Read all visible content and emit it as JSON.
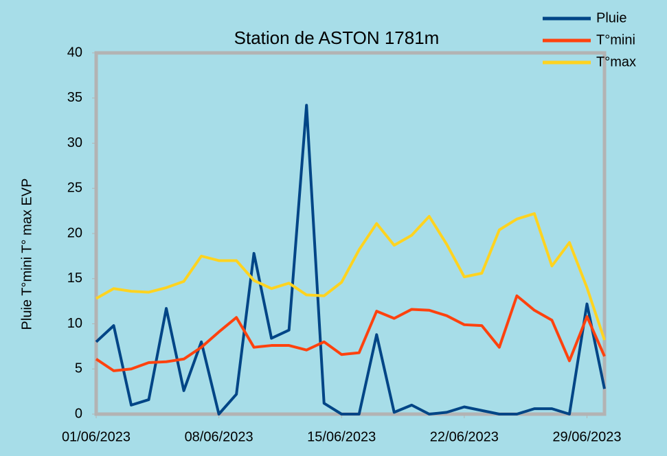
{
  "chart_data": {
    "type": "line",
    "title": "Station de ASTON 1781m",
    "y_label": "Pluie T°mini T° max EVP",
    "categories": [
      "01/06/2023",
      null,
      null,
      null,
      null,
      null,
      null,
      "08/06/2023",
      null,
      null,
      null,
      null,
      null,
      null,
      "15/06/2023",
      null,
      null,
      null,
      null,
      null,
      null,
      "22/06/2023",
      null,
      null,
      null,
      null,
      null,
      null,
      "29/06/2023",
      null
    ],
    "series": [
      {
        "name": "Pluie",
        "color": "#004586",
        "values": [
          8.0,
          9.8,
          1.0,
          1.6,
          11.7,
          2.6,
          8.0,
          0,
          2.2,
          17.8,
          8.4,
          9.3,
          34.2,
          1.2,
          0,
          0,
          8.8,
          0.2,
          1.0,
          0,
          0.2,
          0.8,
          0.4,
          0,
          0,
          0.6,
          0.6,
          0,
          12.2,
          2.8
        ]
      },
      {
        "name": "T°mini",
        "color": "#ff420e",
        "values": [
          6.1,
          4.8,
          5.0,
          5.7,
          5.8,
          6.1,
          7.4,
          9.1,
          10.7,
          7.4,
          7.6,
          7.6,
          7.1,
          8.0,
          6.6,
          6.8,
          11.4,
          10.6,
          11.6,
          11.5,
          10.9,
          9.9,
          9.8,
          7.4,
          13.1,
          11.5,
          10.4,
          5.9,
          10.8,
          6.4
        ]
      },
      {
        "name": "T°max",
        "color": "#ffd320",
        "values": [
          12.8,
          13.9,
          13.6,
          13.5,
          14.0,
          14.7,
          17.5,
          17.0,
          17.0,
          14.8,
          13.9,
          14.5,
          13.2,
          13.1,
          14.6,
          18.2,
          21.1,
          18.7,
          19.8,
          21.9,
          18.8,
          15.2,
          15.6,
          20.4,
          21.6,
          22.2,
          16.4,
          19.0,
          14.0,
          8.2
        ]
      }
    ],
    "ylim": [
      0,
      40
    ],
    "yticks": [
      0,
      5,
      10,
      15,
      20,
      25,
      30,
      35,
      40
    ],
    "legend": "top-right"
  }
}
